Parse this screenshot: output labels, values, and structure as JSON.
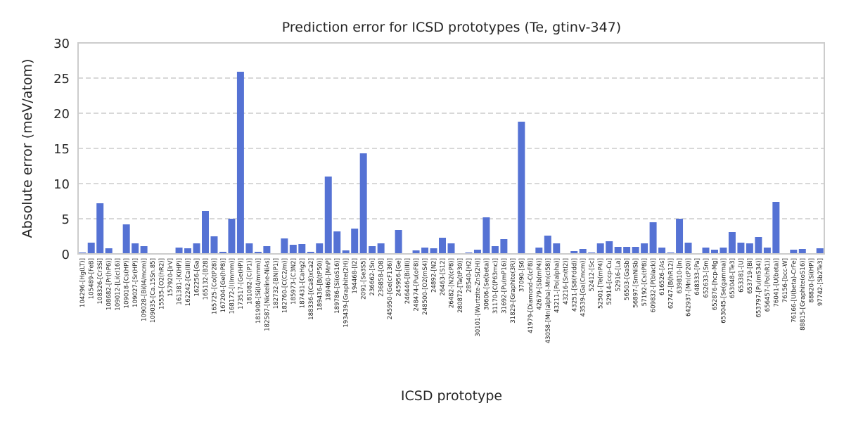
{
  "chart_data": {
    "type": "bar",
    "title": "Prediction error for ICSD prototypes (Te, gtinv-347)",
    "xlabel": "ICSD prototype",
    "ylabel": "Absolute error (meV/atom)",
    "ylim": [
      0,
      30
    ],
    "yticks": [
      "0",
      "5",
      "10",
      "15",
      "20",
      "25",
      "30"
    ],
    "grid": "y-dashed",
    "bar_color": "#5572d4",
    "categories": [
      "104296-[Hg(LT)]",
      "105489-[FeB]",
      "108326-[Cr3Si]",
      "108682-[Pr(hP6)]",
      "109012-[Li(cI16)]",
      "109018-[Cs(HP)]",
      "109027-[Sr(HP)]",
      "109028-[Bi(I4/mcm)]",
      "109035-[Ca.15Sn.85]",
      "15535-[O2(hR2)]",
      "157920-[IrV]",
      "161381-[K(HP)]",
      "162242-[Ca(III)]",
      "162256-[Ga]",
      "165132-[B28]",
      "165725-[Co(tP28)]",
      "167204-[Ge(hP8)]",
      "168172-[I(Immm)]",
      "173517-[Ge(HP)]",
      "181082-[C(P1)]",
      "181908-[Si(I4/mmm)]",
      "182587-[Nickeline-NiAs]",
      "182732-[BN(P1)]",
      "182760-[C(C2/m)]",
      "185973-[C3N2]",
      "187431-[CaHg2]",
      "188336-[(Ca8)xCa2]",
      "189436-[B(tP50)]",
      "189460-[MnP]",
      "189786-[Si(oS16)]",
      "193439-[Graphite(2H)]",
      "194468-[I2]",
      "2091-[Se3S5]",
      "236662-[Sn]",
      "236858-[O8]",
      "245950-[Ge(cF136)]",
      "245956-[Ge]",
      "246446-[Bi(III)]",
      "248474-[Pu(oF8)]",
      "248500-[O2(mS4)]",
      "24892-[N2]",
      "26463-[S12]",
      "26482-[N2(cP8)]",
      "280872-[Ta(tP30)]",
      "28540-[H2]",
      "30101-[Wurtzite-ZnS(2H)]",
      "30606-[Se(beta)]",
      "31170-[C(P63mc)]",
      "31692-[Pu(mP16)]",
      "31829-[Graphite(3R)]",
      "37090-[S6]",
      "41979-[Diamond-C(cF8)]",
      "42679-[Sb(mP4)]",
      "43058-[Mn(alpha)-Mn(cI58)]",
      "43211-[Po(alpha)]",
      "43216-[Sn(tI2)]",
      "43251-[S8(Fddd)]",
      "43539-[Ga(Cmcm)]",
      "52412-[Sc]",
      "52501-[Te(mP4)]",
      "52914-[ccp-Cu]",
      "52916-[La]",
      "56503-[GaSb]",
      "56897-[SmNiSb]",
      "57192-[Cs(tP8)]",
      "609832-[P(black)]",
      "616526-[As]",
      "62747-[B(hR12)]",
      "639810-[In]",
      "642937-[Mn(cP20)]",
      "648333-[Pa]",
      "652633-[Sm]",
      "652876-[hcp-Mg]",
      "653045-[Se(gamma)]",
      "653048-[Te3]",
      "653381-[U]",
      "653719-[Bi]",
      "653797-[Pu(mS34)]",
      "656457-[Po(hR1)]",
      "76041-[U(beta)]",
      "76156-[bcc-W]",
      "76166-[U(beta)-CrFe]",
      "88815-[Graphite(oS16)]",
      "88820-[Si(HP)]",
      "97742-[Sb2Te3]"
    ],
    "values": [
      0.2,
      1.6,
      7.2,
      0.8,
      0.1,
      4.2,
      1.5,
      1.1,
      0.0,
      0.1,
      0.1,
      0.9,
      0.8,
      1.5,
      6.1,
      2.5,
      0.3,
      5.0,
      25.9,
      1.5,
      0.3,
      1.1,
      0.0,
      2.2,
      1.3,
      1.4,
      0.3,
      1.5,
      11.0,
      3.2,
      0.5,
      3.6,
      14.3,
      1.1,
      1.5,
      0.0,
      3.4,
      0.1,
      0.5,
      0.9,
      0.8,
      2.3,
      1.5,
      0.1,
      0.2,
      0.6,
      5.2,
      1.1,
      2.1,
      0.0,
      18.8,
      0.1,
      0.9,
      2.6,
      1.5,
      0.1,
      0.4,
      0.7,
      0.2,
      1.5,
      1.8,
      1.0,
      1.0,
      1.0,
      1.5,
      4.5,
      0.9,
      0.2,
      5.0,
      1.6,
      0.1,
      0.9,
      0.6,
      0.9,
      3.1,
      1.6,
      1.5,
      2.4,
      0.9,
      7.4,
      0.1,
      0.6,
      0.7,
      0.0,
      0.8
    ]
  }
}
